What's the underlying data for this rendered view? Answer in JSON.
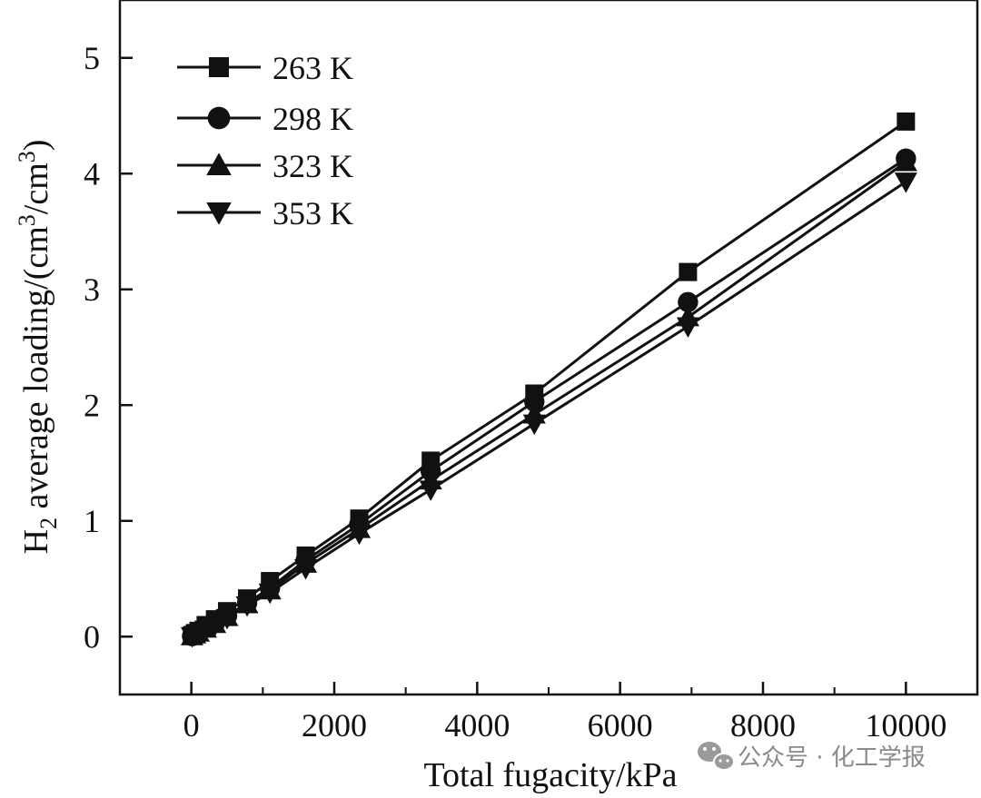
{
  "chart_data": {
    "type": "line",
    "title": "",
    "xlabel": "Total fugacity/kPa",
    "ylabel": {
      "prefix": "H",
      "prefix_sub": "2",
      "middle": " average loading/(cm",
      "sup1": "3",
      "mid2": "/cm",
      "sup2": "3",
      "suffix": ")"
    },
    "xlim": [
      -1000,
      11000
    ],
    "ylim": [
      -0.5,
      5.5
    ],
    "xticks": [
      0,
      2000,
      4000,
      6000,
      8000,
      10000
    ],
    "yticks": [
      0,
      1,
      2,
      3,
      4,
      5
    ],
    "grid": false,
    "legend_position": "top-left",
    "x": [
      10,
      50,
      100,
      200,
      330,
      500,
      780,
      1100,
      1600,
      2350,
      3350,
      4800,
      6950,
      10000
    ],
    "series": [
      {
        "name": "263 K",
        "marker": "square",
        "values": [
          0.01,
          0.03,
          0.05,
          0.1,
          0.15,
          0.22,
          0.33,
          0.48,
          0.7,
          1.02,
          1.52,
          2.1,
          3.15,
          4.45
        ]
      },
      {
        "name": "298 K",
        "marker": "circle",
        "values": [
          0.005,
          0.02,
          0.04,
          0.08,
          0.12,
          0.18,
          0.29,
          0.42,
          0.66,
          0.97,
          1.43,
          2.03,
          2.89,
          4.13
        ]
      },
      {
        "name": "323 K",
        "marker": "triangle-up",
        "values": [
          0.004,
          0.02,
          0.035,
          0.07,
          0.11,
          0.17,
          0.28,
          0.4,
          0.63,
          0.93,
          1.35,
          1.92,
          2.76,
          4.1
        ]
      },
      {
        "name": "353 K",
        "marker": "triangle-down",
        "values": [
          0.003,
          0.015,
          0.03,
          0.06,
          0.1,
          0.16,
          0.27,
          0.38,
          0.59,
          0.89,
          1.27,
          1.84,
          2.68,
          3.93
        ]
      }
    ]
  },
  "watermark": {
    "icon": "wechat-icon",
    "text": "公众号 · 化工学报"
  }
}
